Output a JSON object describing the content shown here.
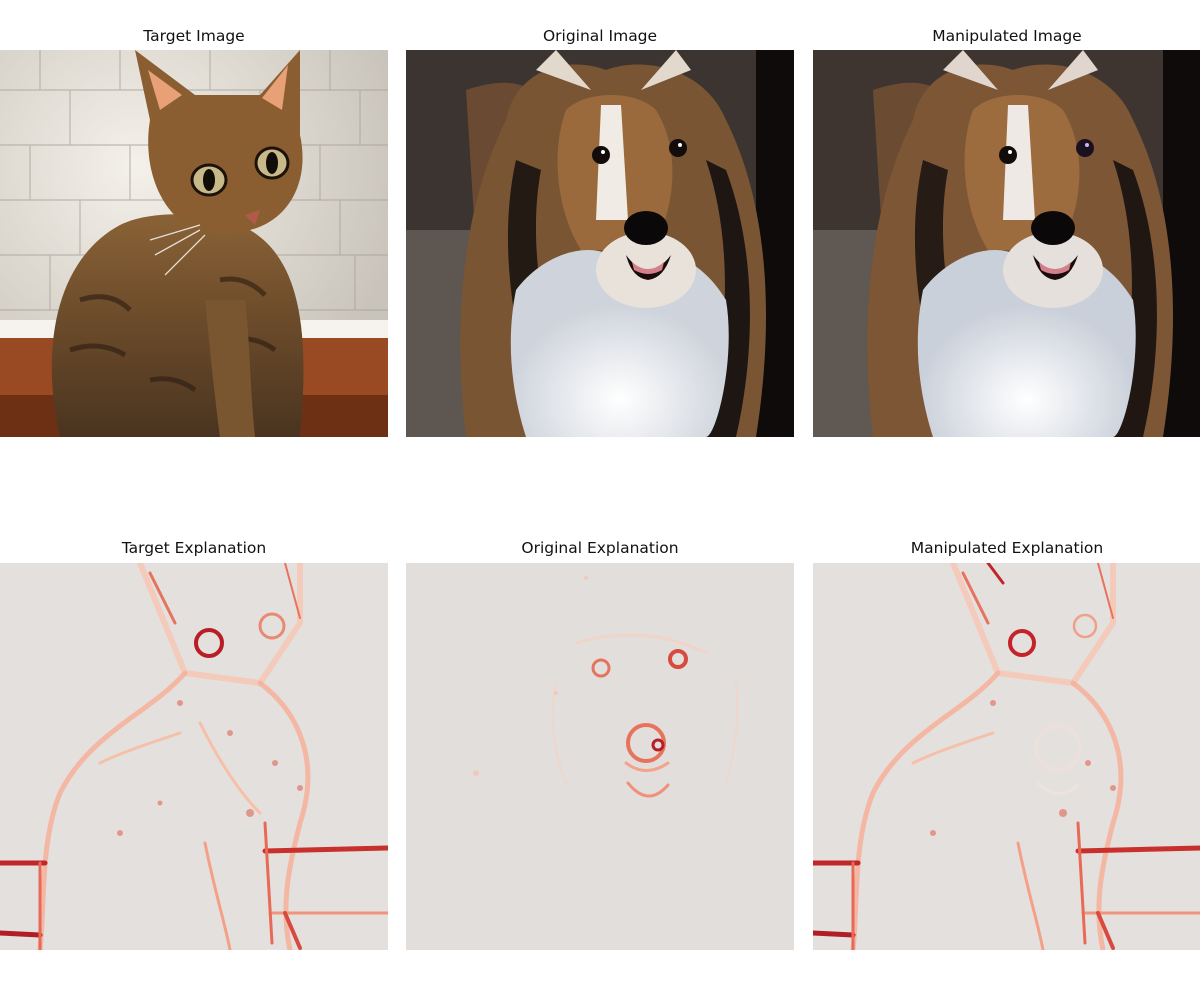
{
  "figure": {
    "panels": [
      {
        "title": "Target Image",
        "content": "photo",
        "subject": "tabby kitten sitting in front of a stone wall and window sill"
      },
      {
        "title": "Original Image",
        "content": "photo",
        "subject": "sable and white shetland sheepdog face"
      },
      {
        "title": "Manipulated Image",
        "content": "photo",
        "subject": "sable and white shetland sheepdog face with slight perturbation"
      },
      {
        "title": "Target Explanation",
        "content": "saliency heatmap",
        "subject": "kitten outline"
      },
      {
        "title": "Original Explanation",
        "content": "saliency heatmap",
        "subject": "dog eyes and nose"
      },
      {
        "title": "Manipulated Explanation",
        "content": "saliency heatmap",
        "subject": "kitten outline"
      }
    ],
    "colors": {
      "heatmap_background": "#e2dedc",
      "heatmap_light": "#fbd0b9",
      "heatmap_mid": "#f0826a",
      "heatmap_strong": "#c5232a",
      "heatmap_dark": "#8c0f14"
    }
  }
}
